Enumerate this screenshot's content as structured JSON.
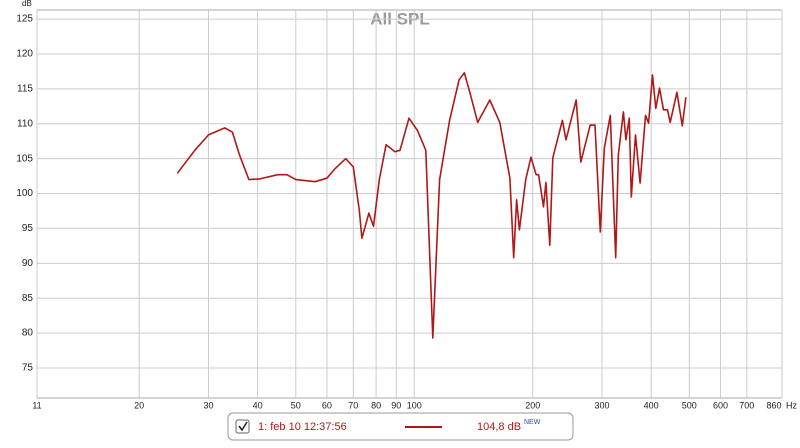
{
  "chart_data": {
    "type": "line",
    "title": "All SPL",
    "y_label": "dB",
    "x_unit": "Hz",
    "log_x": true,
    "grid": true,
    "xlim": [
      11,
      860
    ],
    "ylim": [
      70.7,
      126.3
    ],
    "xticks": [
      11,
      20,
      30,
      40,
      50,
      60,
      70,
      80,
      90,
      100,
      200,
      300,
      400,
      500,
      600,
      700,
      860
    ],
    "yticks": [
      75,
      80,
      85,
      90,
      95,
      100,
      105,
      110,
      115,
      120,
      125
    ],
    "x": [
      25,
      27.7,
      30,
      33,
      34.5,
      36,
      38,
      40.5,
      45,
      47.5,
      50,
      56,
      60,
      63,
      67,
      70,
      72.5,
      73.6,
      76.7,
      78.8,
      81.5,
      84.8,
      89.3,
      92,
      97,
      102,
      107,
      111.5,
      116,
      123,
      130,
      134,
      138,
      145,
      155.6,
      165,
      175,
      179,
      182,
      185,
      192,
      198,
      204,
      207,
      213,
      216,
      221,
      225,
      238,
      243,
      252,
      258,
      265,
      280,
      288,
      297,
      304,
      315,
      325,
      330,
      340,
      345,
      352,
      356,
      365,
      375,
      387,
      394,
      403,
      411,
      420,
      430,
      440,
      447,
      465,
      480,
      490
    ],
    "series": [
      {
        "name": "1: feb 10 12:37:56",
        "color": "#b01818",
        "legend_value": "104,8 dB",
        "legend_badge": "NEW",
        "values": [
          102.9,
          106.2,
          108.4,
          109.4,
          108.8,
          105.5,
          102,
          102.1,
          102.7,
          102.7,
          102,
          101.7,
          102.2,
          103.6,
          105,
          103.8,
          97.6,
          93.6,
          97.2,
          95.3,
          102,
          107,
          106,
          106.2,
          110.8,
          109,
          106.2,
          79.3,
          102,
          110.5,
          116.3,
          117.3,
          114.8,
          110.2,
          113.4,
          110.2,
          102.2,
          90.8,
          99.1,
          94.8,
          102,
          105.2,
          102.7,
          102.7,
          98.1,
          101.6,
          92.6,
          105.1,
          110.5,
          107.7,
          111.2,
          113.4,
          104.5,
          109.8,
          109.8,
          94.5,
          106.5,
          111.2,
          90.8,
          105.5,
          111.7,
          107.7,
          110.8,
          99.5,
          108.4,
          101.5,
          111.2,
          110.1,
          117,
          112.2,
          115.1,
          112,
          112,
          110.2,
          114.5,
          109.7,
          113.8
        ]
      }
    ]
  }
}
